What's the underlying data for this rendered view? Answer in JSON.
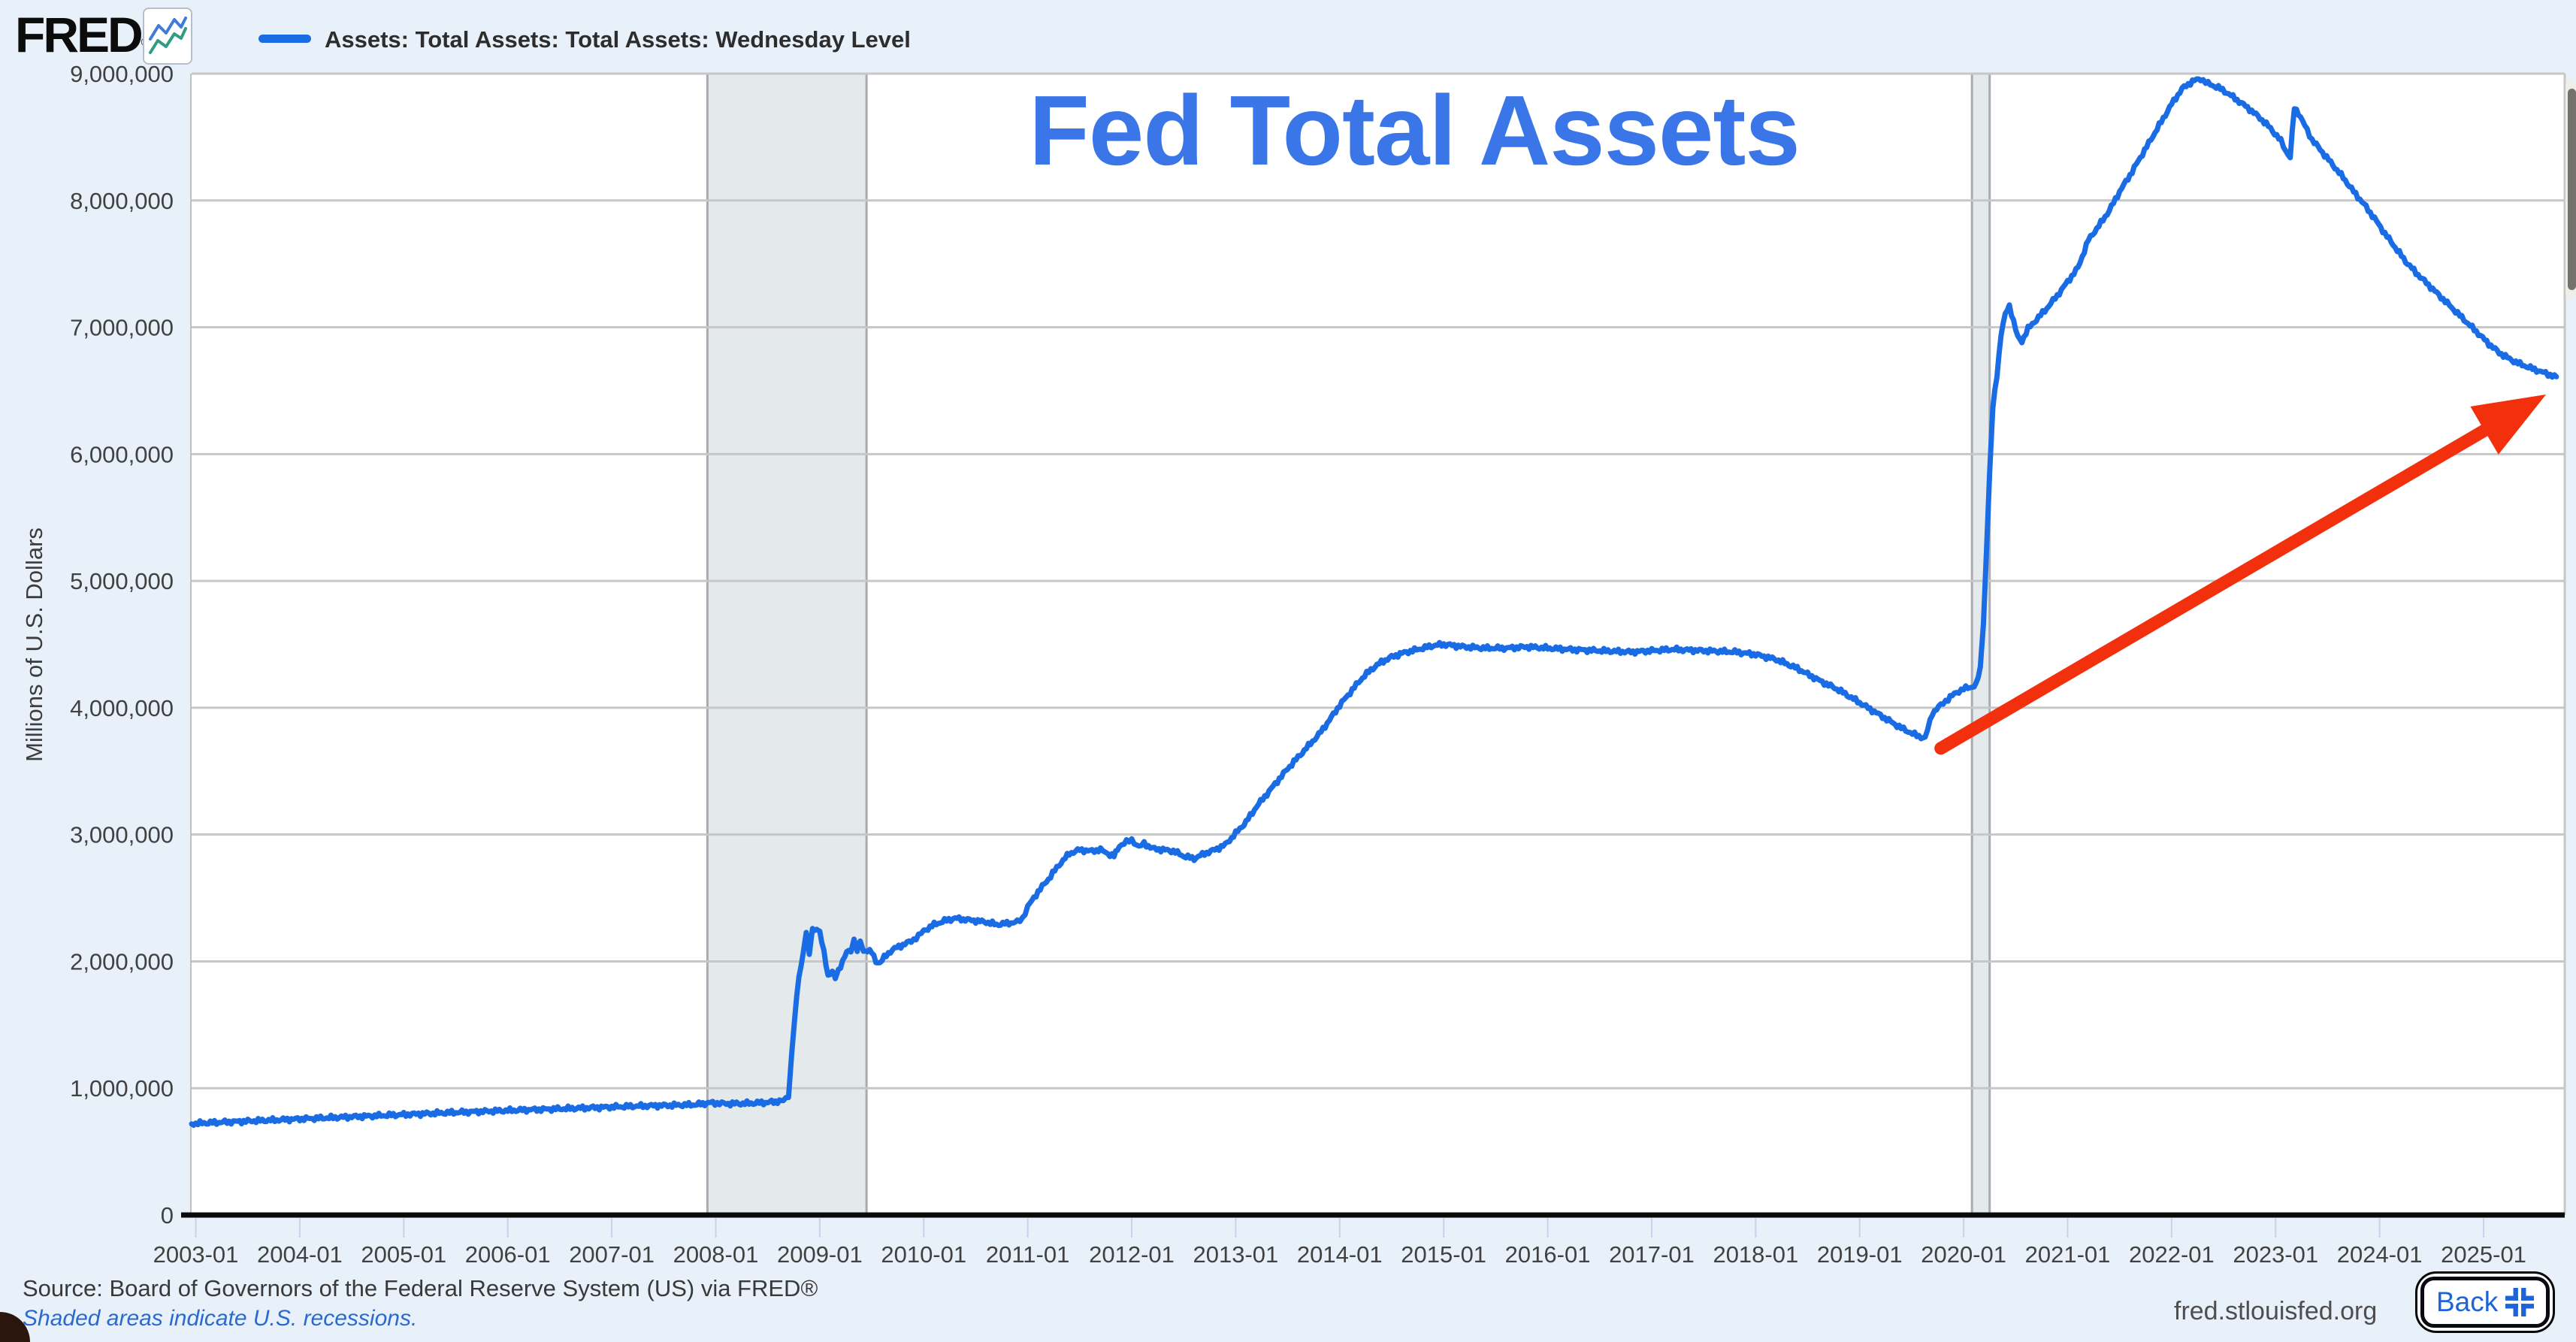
{
  "header": {
    "logo_text": "FRED",
    "logo_registered": "®",
    "legend": {
      "series_label": "Assets: Total Assets: Total Assets: Wednesday Level",
      "swatch_color": "#1a6ce4"
    }
  },
  "overlay_title": {
    "text": "Fed Total Assets",
    "color": "#3b76e8"
  },
  "y_axis": {
    "title": "Millions of U.S. Dollars"
  },
  "footer": {
    "source": "Source: Board of Governors of the Federal Reserve System (US) via FRED®",
    "recession_note": "Shaded areas indicate U.S. recessions.",
    "site": "fred.stlouisfed.org",
    "back_label": "Back"
  },
  "chart_data": {
    "type": "line",
    "title": "Fed Total Assets",
    "ylabel": "Millions of U.S. Dollars",
    "xlim": [
      2002.96,
      2025.78
    ],
    "ylim": [
      0,
      9000000
    ],
    "grid": "horizontal",
    "legend_position": "top-left",
    "line_color": "#1a6ce4",
    "grid_color": "#c7c7c7",
    "axis_color": "#0a0a0a",
    "tick_text_color": "#414141",
    "tick_mark_color": "#c6d4ea",
    "recession_fill": "#e4e9ec",
    "recession_edge": "#a8acb0",
    "x_tick_years": [
      2003,
      2004,
      2005,
      2006,
      2007,
      2008,
      2009,
      2010,
      2011,
      2012,
      2013,
      2014,
      2015,
      2016,
      2017,
      2018,
      2019,
      2020,
      2021,
      2022,
      2023,
      2024,
      2025
    ],
    "x_tick_labels": [
      "2003-01",
      "2004-01",
      "2005-01",
      "2006-01",
      "2007-01",
      "2008-01",
      "2009-01",
      "2010-01",
      "2011-01",
      "2012-01",
      "2013-01",
      "2014-01",
      "2015-01",
      "2016-01",
      "2017-01",
      "2018-01",
      "2019-01",
      "2020-01",
      "2021-01",
      "2022-01",
      "2023-01",
      "2024-01",
      "2025-01"
    ],
    "y_tick_values": [
      0,
      1000000,
      2000000,
      3000000,
      4000000,
      5000000,
      6000000,
      7000000,
      8000000,
      9000000
    ],
    "y_tick_labels": [
      "0",
      "1,000,000",
      "2,000,000",
      "3,000,000",
      "4,000,000",
      "5,000,000",
      "6,000,000",
      "7,000,000",
      "8,000,000",
      "9,000,000"
    ],
    "recessions": [
      {
        "start": 2007.92,
        "end": 2009.45
      },
      {
        "start": 2020.08,
        "end": 2020.25
      }
    ],
    "annotation_arrow": {
      "from": [
        2019.78,
        3680000
      ],
      "to": [
        2025.6,
        6470000
      ],
      "color": "#f2300e"
    },
    "series": [
      {
        "name": "Assets: Total Assets: Total Assets: Wednesday Level",
        "units": "Millions of U.S. Dollars",
        "points": [
          [
            2002.96,
            718
          ],
          [
            2003.0,
            722
          ],
          [
            2003.2,
            730
          ],
          [
            2003.4,
            737
          ],
          [
            2003.6,
            744
          ],
          [
            2003.8,
            750
          ],
          [
            2004.0,
            758
          ],
          [
            2004.2,
            764
          ],
          [
            2004.4,
            771
          ],
          [
            2004.6,
            778
          ],
          [
            2004.8,
            785
          ],
          [
            2005.0,
            792
          ],
          [
            2005.2,
            799
          ],
          [
            2005.4,
            806
          ],
          [
            2005.6,
            812
          ],
          [
            2005.8,
            818
          ],
          [
            2006.0,
            824
          ],
          [
            2006.2,
            830
          ],
          [
            2006.4,
            835
          ],
          [
            2006.6,
            840
          ],
          [
            2006.8,
            846
          ],
          [
            2007.0,
            852
          ],
          [
            2007.2,
            858
          ],
          [
            2007.4,
            862
          ],
          [
            2007.6,
            866
          ],
          [
            2007.8,
            870
          ],
          [
            2007.95,
            885
          ],
          [
            2008.1,
            878
          ],
          [
            2008.3,
            880
          ],
          [
            2008.5,
            888
          ],
          [
            2008.65,
            900
          ],
          [
            2008.7,
            945
          ],
          [
            2008.73,
            1260
          ],
          [
            2008.76,
            1560
          ],
          [
            2008.8,
            1880
          ],
          [
            2008.84,
            2060
          ],
          [
            2008.87,
            2240
          ],
          [
            2008.9,
            2060
          ],
          [
            2008.93,
            2250
          ],
          [
            2008.97,
            2260
          ],
          [
            2009.0,
            2230
          ],
          [
            2009.04,
            2070
          ],
          [
            2009.08,
            1890
          ],
          [
            2009.12,
            1920
          ],
          [
            2009.15,
            1870
          ],
          [
            2009.18,
            1930
          ],
          [
            2009.22,
            2000
          ],
          [
            2009.26,
            2070
          ],
          [
            2009.3,
            2090
          ],
          [
            2009.33,
            2170
          ],
          [
            2009.36,
            2090
          ],
          [
            2009.39,
            2160
          ],
          [
            2009.42,
            2080
          ],
          [
            2009.46,
            2090
          ],
          [
            2009.5,
            2070
          ],
          [
            2009.54,
            2000
          ],
          [
            2009.58,
            1990
          ],
          [
            2009.62,
            2030
          ],
          [
            2009.68,
            2080
          ],
          [
            2009.74,
            2110
          ],
          [
            2009.8,
            2130
          ],
          [
            2009.88,
            2160
          ],
          [
            2009.95,
            2200
          ],
          [
            2010.0,
            2240
          ],
          [
            2010.1,
            2290
          ],
          [
            2010.2,
            2320
          ],
          [
            2010.3,
            2340
          ],
          [
            2010.4,
            2330
          ],
          [
            2010.5,
            2320
          ],
          [
            2010.6,
            2310
          ],
          [
            2010.7,
            2290
          ],
          [
            2010.8,
            2300
          ],
          [
            2010.9,
            2310
          ],
          [
            2010.95,
            2340
          ],
          [
            2011.0,
            2430
          ],
          [
            2011.1,
            2550
          ],
          [
            2011.2,
            2650
          ],
          [
            2011.3,
            2760
          ],
          [
            2011.4,
            2850
          ],
          [
            2011.5,
            2880
          ],
          [
            2011.6,
            2870
          ],
          [
            2011.7,
            2880
          ],
          [
            2011.77,
            2850
          ],
          [
            2011.83,
            2830
          ],
          [
            2011.88,
            2910
          ],
          [
            2011.95,
            2940
          ],
          [
            2012.0,
            2960
          ],
          [
            2012.07,
            2900
          ],
          [
            2012.12,
            2930
          ],
          [
            2012.2,
            2890
          ],
          [
            2012.3,
            2880
          ],
          [
            2012.4,
            2870
          ],
          [
            2012.5,
            2830
          ],
          [
            2012.6,
            2810
          ],
          [
            2012.7,
            2850
          ],
          [
            2012.8,
            2880
          ],
          [
            2012.9,
            2920
          ],
          [
            2013.0,
            3010
          ],
          [
            2013.1,
            3100
          ],
          [
            2013.2,
            3220
          ],
          [
            2013.3,
            3320
          ],
          [
            2013.4,
            3420
          ],
          [
            2013.5,
            3520
          ],
          [
            2013.6,
            3610
          ],
          [
            2013.7,
            3700
          ],
          [
            2013.8,
            3790
          ],
          [
            2013.9,
            3900
          ],
          [
            2014.0,
            4020
          ],
          [
            2014.1,
            4120
          ],
          [
            2014.2,
            4220
          ],
          [
            2014.3,
            4300
          ],
          [
            2014.4,
            4360
          ],
          [
            2014.5,
            4400
          ],
          [
            2014.6,
            4430
          ],
          [
            2014.7,
            4450
          ],
          [
            2014.8,
            4470
          ],
          [
            2014.9,
            4490
          ],
          [
            2015.0,
            4500
          ],
          [
            2015.2,
            4480
          ],
          [
            2015.4,
            4470
          ],
          [
            2015.6,
            4470
          ],
          [
            2015.8,
            4480
          ],
          [
            2016.0,
            4470
          ],
          [
            2016.2,
            4460
          ],
          [
            2016.5,
            4450
          ],
          [
            2016.8,
            4440
          ],
          [
            2017.0,
            4450
          ],
          [
            2017.2,
            4460
          ],
          [
            2017.5,
            4450
          ],
          [
            2017.8,
            4440
          ],
          [
            2018.0,
            4420
          ],
          [
            2018.2,
            4380
          ],
          [
            2018.4,
            4310
          ],
          [
            2018.6,
            4220
          ],
          [
            2018.8,
            4140
          ],
          [
            2019.0,
            4040
          ],
          [
            2019.2,
            3940
          ],
          [
            2019.4,
            3840
          ],
          [
            2019.55,
            3780
          ],
          [
            2019.63,
            3760
          ],
          [
            2019.7,
            3960
          ],
          [
            2019.78,
            4020
          ],
          [
            2019.85,
            4070
          ],
          [
            2019.93,
            4120
          ],
          [
            2020.0,
            4150
          ],
          [
            2020.06,
            4160
          ],
          [
            2020.12,
            4180
          ],
          [
            2020.16,
            4310
          ],
          [
            2020.19,
            4670
          ],
          [
            2020.22,
            5250
          ],
          [
            2020.25,
            5850
          ],
          [
            2020.28,
            6360
          ],
          [
            2020.32,
            6620
          ],
          [
            2020.36,
            6950
          ],
          [
            2020.4,
            7100
          ],
          [
            2020.44,
            7170
          ],
          [
            2020.48,
            7050
          ],
          [
            2020.52,
            6920
          ],
          [
            2020.56,
            6890
          ],
          [
            2020.62,
            6990
          ],
          [
            2020.7,
            7060
          ],
          [
            2020.8,
            7150
          ],
          [
            2020.9,
            7250
          ],
          [
            2021.0,
            7360
          ],
          [
            2021.1,
            7470
          ],
          [
            2021.2,
            7690
          ],
          [
            2021.3,
            7800
          ],
          [
            2021.4,
            7920
          ],
          [
            2021.5,
            8070
          ],
          [
            2021.6,
            8200
          ],
          [
            2021.7,
            8340
          ],
          [
            2021.8,
            8480
          ],
          [
            2021.9,
            8620
          ],
          [
            2022.0,
            8760
          ],
          [
            2022.1,
            8880
          ],
          [
            2022.2,
            8940
          ],
          [
            2022.28,
            8960
          ],
          [
            2022.35,
            8920
          ],
          [
            2022.45,
            8890
          ],
          [
            2022.55,
            8840
          ],
          [
            2022.65,
            8780
          ],
          [
            2022.75,
            8720
          ],
          [
            2022.85,
            8650
          ],
          [
            2022.95,
            8570
          ],
          [
            2023.05,
            8470
          ],
          [
            2023.1,
            8390
          ],
          [
            2023.14,
            8340
          ],
          [
            2023.18,
            8730
          ],
          [
            2023.22,
            8690
          ],
          [
            2023.28,
            8590
          ],
          [
            2023.35,
            8480
          ],
          [
            2023.45,
            8380
          ],
          [
            2023.55,
            8280
          ],
          [
            2023.65,
            8180
          ],
          [
            2023.75,
            8070
          ],
          [
            2023.85,
            7970
          ],
          [
            2023.95,
            7860
          ],
          [
            2024.05,
            7740
          ],
          [
            2024.15,
            7630
          ],
          [
            2024.25,
            7520
          ],
          [
            2024.35,
            7430
          ],
          [
            2024.45,
            7350
          ],
          [
            2024.55,
            7270
          ],
          [
            2024.65,
            7190
          ],
          [
            2024.75,
            7110
          ],
          [
            2024.85,
            7030
          ],
          [
            2024.95,
            6950
          ],
          [
            2025.05,
            6870
          ],
          [
            2025.15,
            6800
          ],
          [
            2025.25,
            6750
          ],
          [
            2025.35,
            6710
          ],
          [
            2025.45,
            6680
          ],
          [
            2025.55,
            6650
          ],
          [
            2025.62,
            6630
          ],
          [
            2025.7,
            6610
          ]
        ],
        "value_scale": 1000
      }
    ]
  }
}
